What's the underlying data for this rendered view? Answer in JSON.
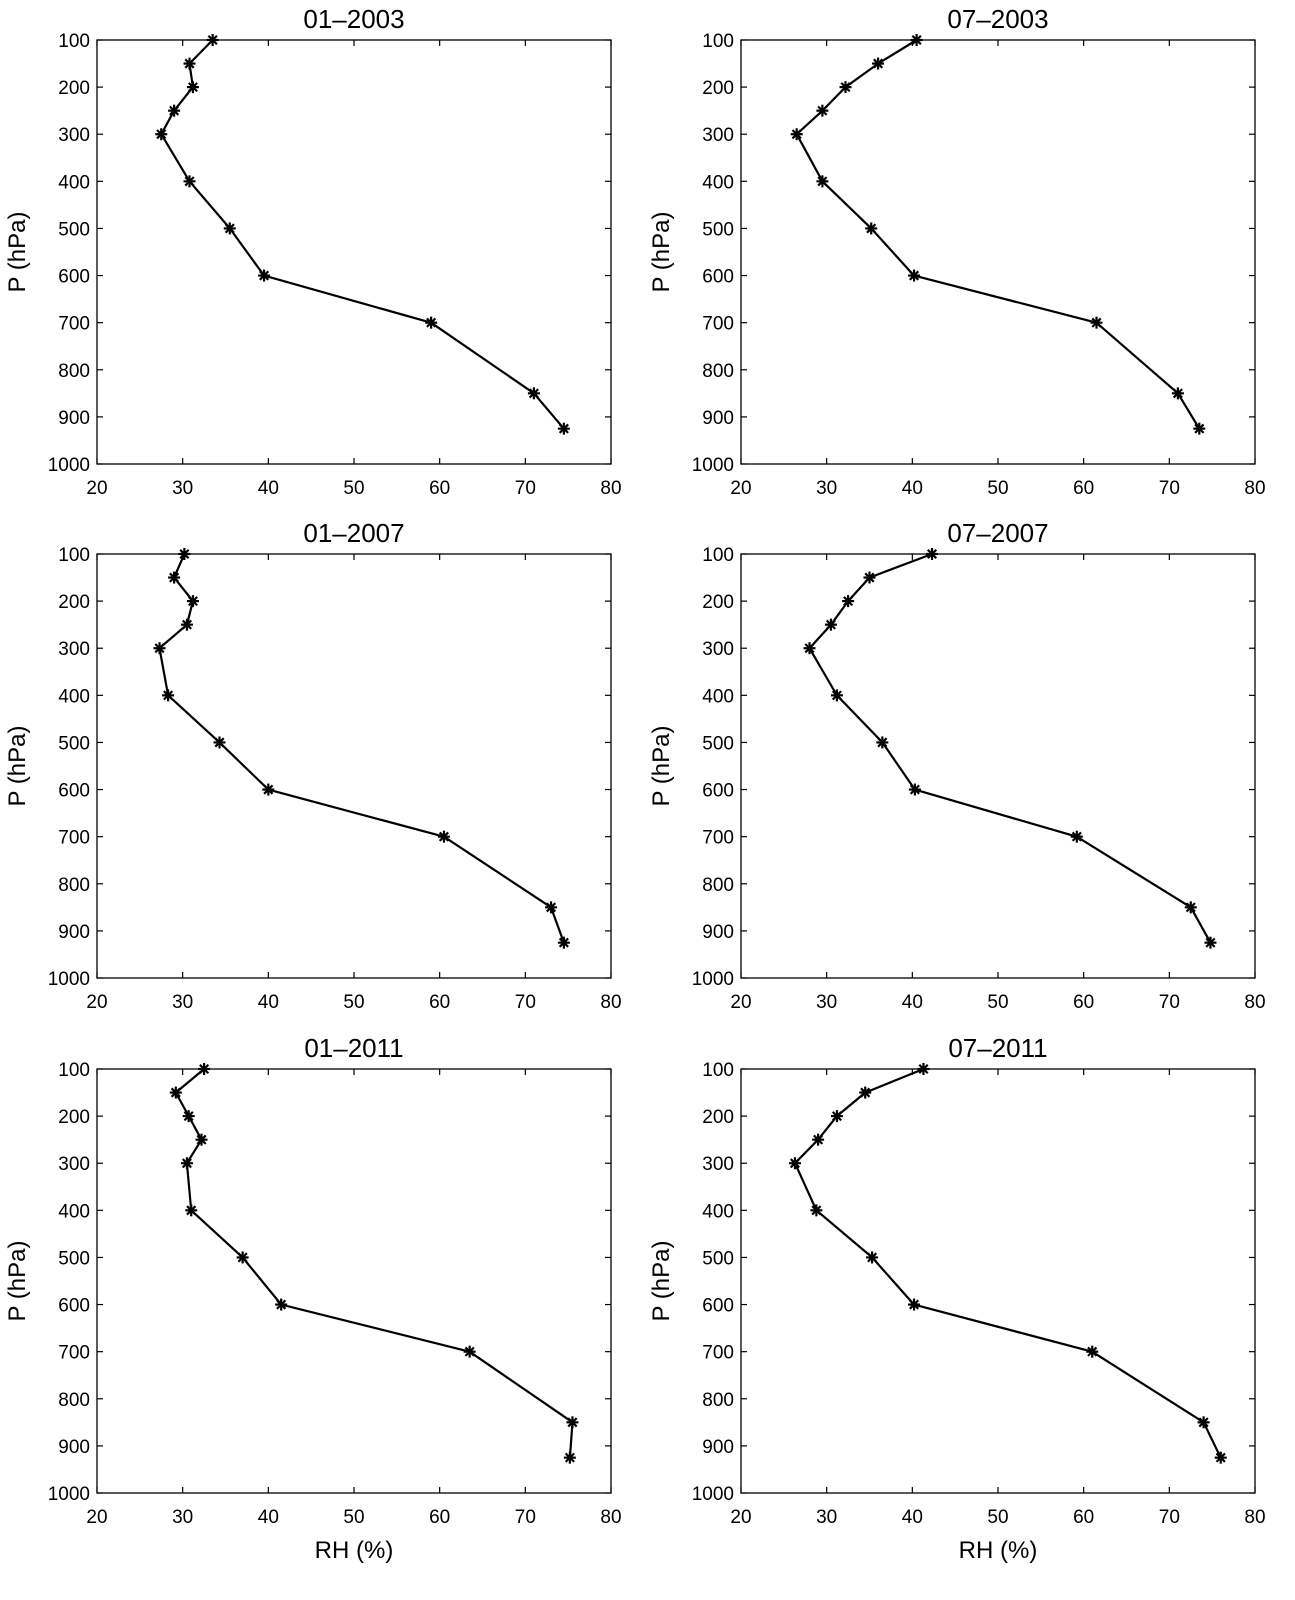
{
  "chart_data": [
    {
      "type": "line",
      "title": "01–2003",
      "xlabel": "",
      "ylabel": "P (hPa)",
      "xlim": [
        20,
        80
      ],
      "ylim": [
        100,
        1000
      ],
      "y_reversed": true,
      "xticks": [
        20,
        30,
        40,
        50,
        60,
        70,
        80
      ],
      "yticks": [
        100,
        200,
        300,
        400,
        500,
        600,
        700,
        800,
        900,
        1000
      ],
      "grid": false,
      "series": [
        {
          "marker": "asterisk",
          "color": "#000000",
          "points": [
            {
              "x": 33.5,
              "y": 100
            },
            {
              "x": 30.8,
              "y": 150
            },
            {
              "x": 31.2,
              "y": 200
            },
            {
              "x": 29.0,
              "y": 250
            },
            {
              "x": 27.5,
              "y": 300
            },
            {
              "x": 30.8,
              "y": 400
            },
            {
              "x": 35.5,
              "y": 500
            },
            {
              "x": 39.5,
              "y": 600
            },
            {
              "x": 59.0,
              "y": 700
            },
            {
              "x": 71.0,
              "y": 850
            },
            {
              "x": 74.5,
              "y": 925
            }
          ]
        }
      ]
    },
    {
      "type": "line",
      "title": "07–2003",
      "xlabel": "",
      "ylabel": "P (hPa)",
      "xlim": [
        20,
        80
      ],
      "ylim": [
        100,
        1000
      ],
      "y_reversed": true,
      "xticks": [
        20,
        30,
        40,
        50,
        60,
        70,
        80
      ],
      "yticks": [
        100,
        200,
        300,
        400,
        500,
        600,
        700,
        800,
        900,
        1000
      ],
      "grid": false,
      "series": [
        {
          "marker": "asterisk",
          "color": "#000000",
          "points": [
            {
              "x": 40.5,
              "y": 100
            },
            {
              "x": 36.0,
              "y": 150
            },
            {
              "x": 32.2,
              "y": 200
            },
            {
              "x": 29.5,
              "y": 250
            },
            {
              "x": 26.5,
              "y": 300
            },
            {
              "x": 29.5,
              "y": 400
            },
            {
              "x": 35.2,
              "y": 500
            },
            {
              "x": 40.2,
              "y": 600
            },
            {
              "x": 61.5,
              "y": 700
            },
            {
              "x": 71.0,
              "y": 850
            },
            {
              "x": 73.5,
              "y": 925
            }
          ]
        }
      ]
    },
    {
      "type": "line",
      "title": "01–2007",
      "xlabel": "",
      "ylabel": "P (hPa)",
      "xlim": [
        20,
        80
      ],
      "ylim": [
        100,
        1000
      ],
      "y_reversed": true,
      "xticks": [
        20,
        30,
        40,
        50,
        60,
        70,
        80
      ],
      "yticks": [
        100,
        200,
        300,
        400,
        500,
        600,
        700,
        800,
        900,
        1000
      ],
      "grid": false,
      "series": [
        {
          "marker": "asterisk",
          "color": "#000000",
          "points": [
            {
              "x": 30.2,
              "y": 100
            },
            {
              "x": 29.0,
              "y": 150
            },
            {
              "x": 31.2,
              "y": 200
            },
            {
              "x": 30.5,
              "y": 250
            },
            {
              "x": 27.3,
              "y": 300
            },
            {
              "x": 28.3,
              "y": 400
            },
            {
              "x": 34.3,
              "y": 500
            },
            {
              "x": 40.0,
              "y": 600
            },
            {
              "x": 60.5,
              "y": 700
            },
            {
              "x": 73.0,
              "y": 850
            },
            {
              "x": 74.5,
              "y": 925
            }
          ]
        }
      ]
    },
    {
      "type": "line",
      "title": "07–2007",
      "xlabel": "",
      "ylabel": "P (hPa)",
      "xlim": [
        20,
        80
      ],
      "ylim": [
        100,
        1000
      ],
      "y_reversed": true,
      "xticks": [
        20,
        30,
        40,
        50,
        60,
        70,
        80
      ],
      "yticks": [
        100,
        200,
        300,
        400,
        500,
        600,
        700,
        800,
        900,
        1000
      ],
      "grid": false,
      "series": [
        {
          "marker": "asterisk",
          "color": "#000000",
          "points": [
            {
              "x": 42.3,
              "y": 100
            },
            {
              "x": 35.0,
              "y": 150
            },
            {
              "x": 32.5,
              "y": 200
            },
            {
              "x": 30.5,
              "y": 250
            },
            {
              "x": 28.0,
              "y": 300
            },
            {
              "x": 31.2,
              "y": 400
            },
            {
              "x": 36.5,
              "y": 500
            },
            {
              "x": 40.3,
              "y": 600
            },
            {
              "x": 59.2,
              "y": 700
            },
            {
              "x": 72.5,
              "y": 850
            },
            {
              "x": 74.8,
              "y": 925
            }
          ]
        }
      ]
    },
    {
      "type": "line",
      "title": "01–2011",
      "xlabel": "RH (%)",
      "ylabel": "P (hPa)",
      "xlim": [
        20,
        80
      ],
      "ylim": [
        100,
        1000
      ],
      "y_reversed": true,
      "xticks": [
        20,
        30,
        40,
        50,
        60,
        70,
        80
      ],
      "yticks": [
        100,
        200,
        300,
        400,
        500,
        600,
        700,
        800,
        900,
        1000
      ],
      "grid": false,
      "series": [
        {
          "marker": "asterisk",
          "color": "#000000",
          "points": [
            {
              "x": 32.5,
              "y": 100
            },
            {
              "x": 29.2,
              "y": 150
            },
            {
              "x": 30.7,
              "y": 200
            },
            {
              "x": 32.2,
              "y": 250
            },
            {
              "x": 30.5,
              "y": 300
            },
            {
              "x": 31.0,
              "y": 400
            },
            {
              "x": 37.0,
              "y": 500
            },
            {
              "x": 41.5,
              "y": 600
            },
            {
              "x": 63.5,
              "y": 700
            },
            {
              "x": 75.5,
              "y": 850
            },
            {
              "x": 75.2,
              "y": 925
            }
          ]
        }
      ]
    },
    {
      "type": "line",
      "title": "07–2011",
      "xlabel": "RH (%)",
      "ylabel": "P (hPa)",
      "xlim": [
        20,
        80
      ],
      "ylim": [
        100,
        1000
      ],
      "y_reversed": true,
      "xticks": [
        20,
        30,
        40,
        50,
        60,
        70,
        80
      ],
      "yticks": [
        100,
        200,
        300,
        400,
        500,
        600,
        700,
        800,
        900,
        1000
      ],
      "grid": false,
      "series": [
        {
          "marker": "asterisk",
          "color": "#000000",
          "points": [
            {
              "x": 41.3,
              "y": 100
            },
            {
              "x": 34.5,
              "y": 150
            },
            {
              "x": 31.2,
              "y": 200
            },
            {
              "x": 29.0,
              "y": 250
            },
            {
              "x": 26.3,
              "y": 300
            },
            {
              "x": 28.8,
              "y": 400
            },
            {
              "x": 35.3,
              "y": 500
            },
            {
              "x": 40.2,
              "y": 600
            },
            {
              "x": 61.0,
              "y": 700
            },
            {
              "x": 74.0,
              "y": 850
            },
            {
              "x": 76.0,
              "y": 925
            }
          ]
        }
      ]
    }
  ]
}
